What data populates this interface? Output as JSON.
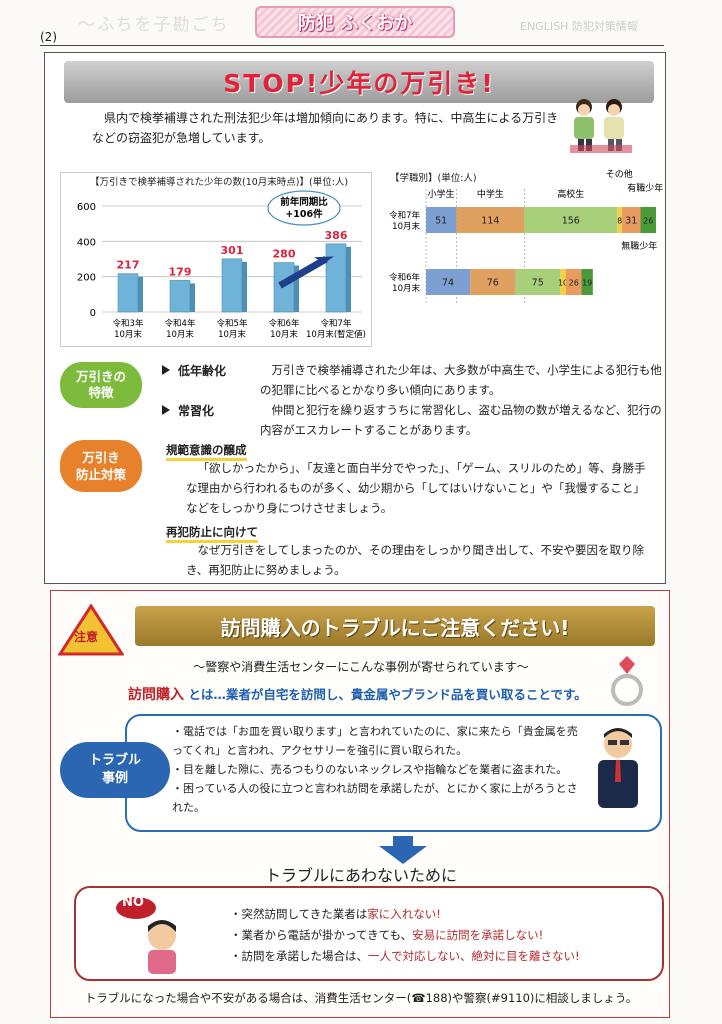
{
  "header": {
    "page_number": "(2)",
    "masthead": "防犯 ふくおか"
  },
  "section1": {
    "banner": "STOP!少年の万引き!",
    "intro": "県内で検挙補導された刑法犯少年は増加傾向にあります。特に、中高生による万引きなどの窃盗犯が急増しています。",
    "features": {
      "pill_line1": "万引きの",
      "pill_line2": "特徴",
      "items": [
        {
          "head": "低年齢化",
          "text": "万引きで検挙補導された少年は、大多数が中高生で、小学生による犯行も他の犯罪に比べるとかなり多い傾向にあります。"
        },
        {
          "head": "常習化",
          "text": "仲間と犯行を繰り返すうちに常習化し、盗む品物の数が増えるなど、犯行の内容がエスカレートすることがあります。"
        }
      ]
    },
    "prevention": {
      "pill_line1": "万引き",
      "pill_line2": "防止対策",
      "sub1_head": "規範意識の醸成",
      "sub1_text": "「欲しかったから」、「友達と面白半分でやった」、「ゲーム、スリルのため」等、身勝手な理由から行われるものが多く、幼少期から「してはいけないこと」や「我慢すること」などをしっかり身につけさせましょう。",
      "sub2_head": "再犯防止に向けて",
      "sub2_text": "なぜ万引きをしてしまったのか、その理由をしっかり聞き出して、不安や要因を取り除き、再犯防止に努めましょう。"
    }
  },
  "chart_data": [
    {
      "type": "bar",
      "title": "【万引きで検挙補導された少年の数(10月末時点)】(単位:人)",
      "categories": [
        "令和3年\n10月末",
        "令和4年\n10月末",
        "令和5年\n10月末",
        "令和6年\n10月末",
        "令和7年\n10月末(暫定値)"
      ],
      "values": [
        217,
        179,
        301,
        280,
        386
      ],
      "ylim": [
        0,
        600
      ],
      "yticks": [
        0,
        200,
        400,
        600
      ],
      "annotation": "前年同期比\n+106件",
      "colors": {
        "bar": "#6fb3d8",
        "label": "#e0233a",
        "arrow": "#1f3f8c"
      }
    },
    {
      "type": "bar",
      "orientation": "horizontal-stacked",
      "title": "【学職別】(単位:人)",
      "categories": [
        "令和7年\n10月末",
        "令和6年\n10月末"
      ],
      "series": [
        {
          "name": "小学生",
          "values": [
            51,
            74
          ],
          "color": "#7d9fd1"
        },
        {
          "name": "中学生",
          "values": [
            114,
            76
          ],
          "color": "#e0a060"
        },
        {
          "name": "高校生",
          "values": [
            156,
            75
          ],
          "color": "#a8d07a"
        },
        {
          "name": "その他",
          "values": [
            8,
            10
          ],
          "color": "#f0d048"
        },
        {
          "name": "有職少年",
          "values": [
            31,
            26
          ],
          "color": "#e89a60"
        },
        {
          "name": "無職少年",
          "values": [
            26,
            19
          ],
          "color": "#4a9a3a"
        }
      ],
      "value_labels": [
        [
          "51",
          "114",
          "156",
          "8",
          "31",
          "26"
        ],
        [
          "74",
          "76",
          "75",
          "10",
          "26",
          "19"
        ]
      ]
    }
  ],
  "section2": {
    "warn_label": "注意",
    "banner": "訪問購入のトラブルにご注意ください!",
    "sub_note": "～警察や消費生活センターにこんな事例が寄せられています～",
    "defn_keyword": "訪問購入",
    "defn_text": "とは…業者が自宅を訪問し、貴金属やブランド品を買い取ることです。",
    "case_pill_line1": "トラブル",
    "case_pill_line2": "事例",
    "cases": [
      "・電話では「お皿を買い取ります」と言われていたのに、家に来たら「貴金属を売ってくれ」と言われ、アクセサリーを強引に買い取られた。",
      "・目を離した隙に、売るつもりのないネックレスや指輪などを業者に盗まれた。",
      "・困っている人の役に立つと言われ訪問を承諾したが、とにかく家に上がろうとされた。"
    ],
    "avoid_title": "トラブルにあわないために",
    "no_label": "NO",
    "avoid": [
      {
        "pre": "・突然訪問してきた業者は",
        "hl": "家に入れない!"
      },
      {
        "pre": "・業者から電話が掛かってきても、",
        "hl": "安易に訪問を承諾しない!"
      },
      {
        "pre": "・訪問を承諾した場合は、",
        "hl": "一人で対応しない、絶対に目を離さない!"
      }
    ],
    "footer": "トラブルになった場合や不安がある場合は、消費生活センター(☎188)や警察(#9110)に相談しましょう。"
  }
}
